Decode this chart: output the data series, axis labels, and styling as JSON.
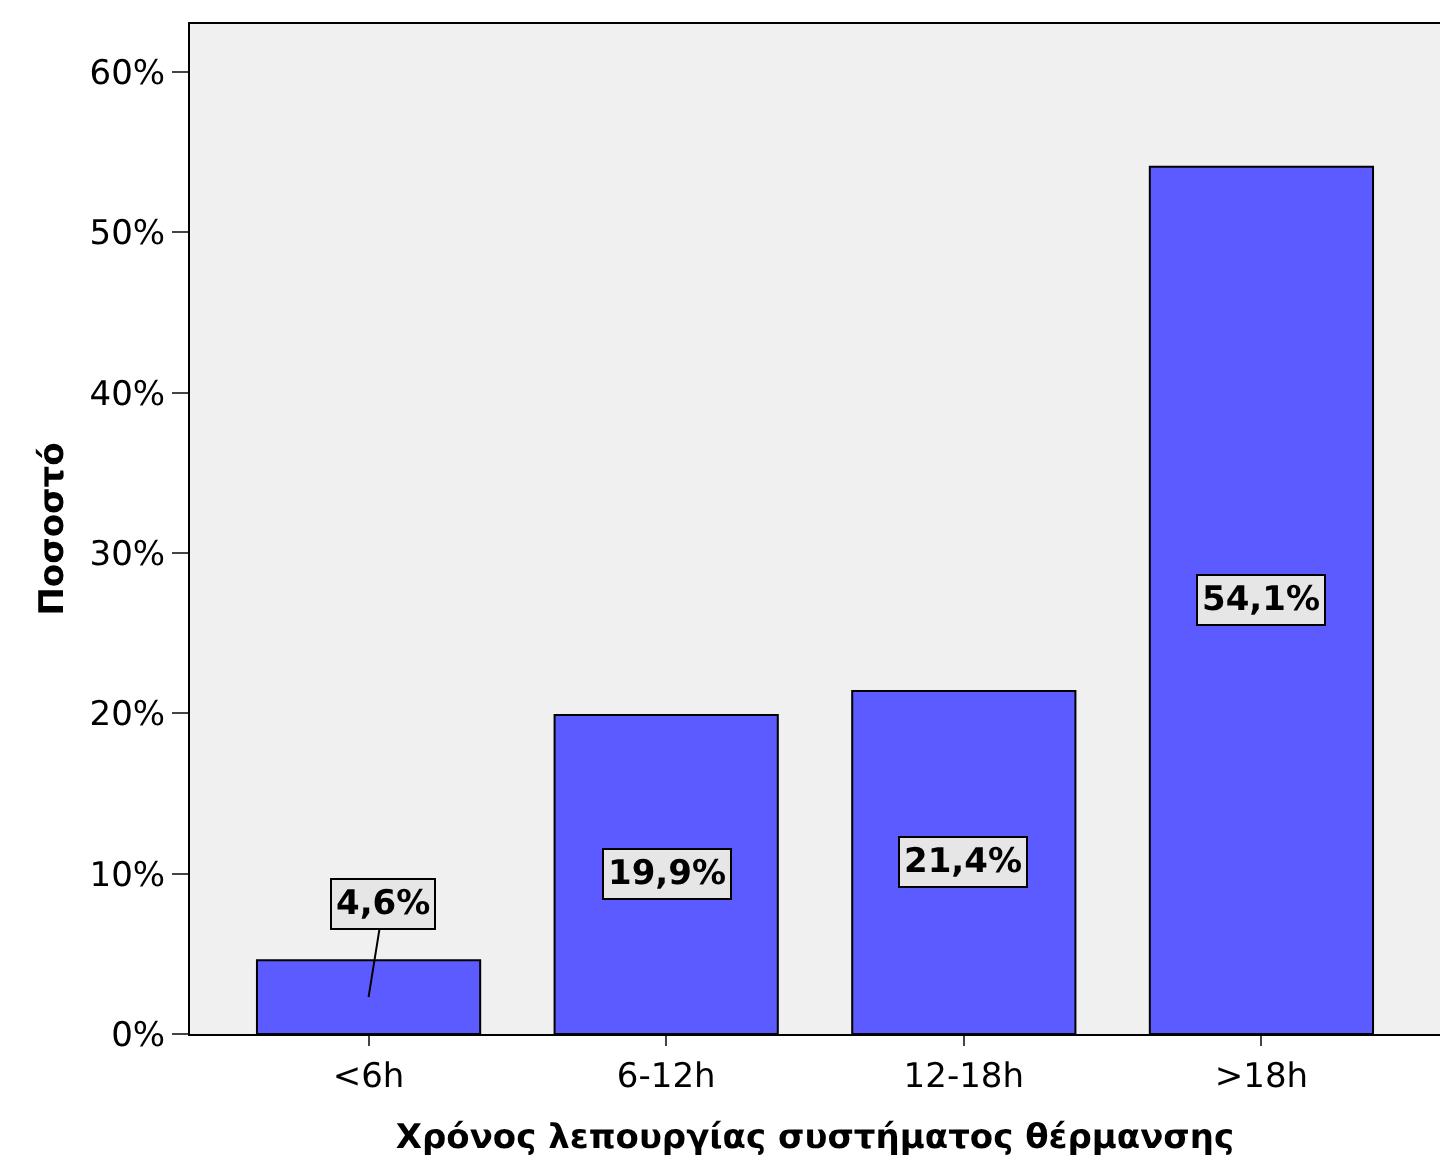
{
  "chart_data": {
    "type": "bar",
    "xlabel": "Χρόνος λεπουργίας συστήματος θέρμανσης",
    "ylabel": "Ποσοστό",
    "categories": [
      "<6h",
      "6-12h",
      "12-18h",
      ">18h"
    ],
    "values": [
      4.6,
      19.9,
      21.4,
      54.1
    ],
    "value_labels": [
      "4,6%",
      "19,9%",
      "21,4%",
      "54,1%"
    ],
    "color": "#5b5bff",
    "ylim": [
      0,
      63
    ],
    "yticks": [
      {
        "value": 0,
        "label": "0%"
      },
      {
        "value": 10,
        "label": "10%"
      },
      {
        "value": 20,
        "label": "20%"
      },
      {
        "value": 30,
        "label": "30%"
      },
      {
        "value": 40,
        "label": "40%"
      },
      {
        "value": 50,
        "label": "50%"
      },
      {
        "value": 60,
        "label": "60%"
      }
    ],
    "grid": false,
    "legend": false
  }
}
